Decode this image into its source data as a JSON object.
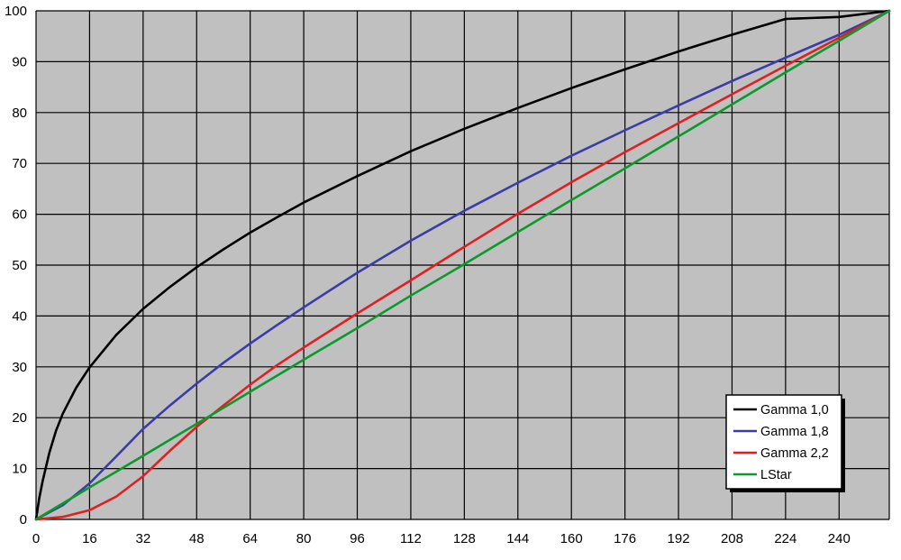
{
  "chart_data": {
    "type": "line",
    "title": "",
    "xlabel": "",
    "ylabel": "",
    "xlim": [
      0,
      255
    ],
    "ylim": [
      0,
      100
    ],
    "grid": true,
    "legend_position": "bottom-right",
    "plot_background": "#c0c0c0",
    "grid_color": "#000000",
    "x_ticks": [
      0,
      16,
      32,
      48,
      64,
      80,
      96,
      112,
      128,
      144,
      160,
      176,
      192,
      208,
      224,
      240
    ],
    "y_ticks": [
      0,
      10,
      20,
      30,
      40,
      50,
      60,
      70,
      80,
      90,
      100
    ],
    "series": [
      {
        "name": "Gamma 1,0",
        "color": "#000000",
        "x": [
          0,
          1,
          2,
          4,
          6,
          8,
          12,
          16,
          24,
          32,
          40,
          48,
          56,
          64,
          72,
          80,
          96,
          112,
          128,
          144,
          160,
          176,
          192,
          208,
          224,
          240,
          255
        ],
        "y": [
          0,
          4.3,
          7.6,
          13.2,
          17.5,
          20.8,
          25.9,
          29.9,
          36.3,
          41.4,
          45.7,
          49.6,
          53.1,
          56.4,
          59.4,
          62.3,
          67.5,
          72.4,
          76.8,
          80.9,
          84.8,
          88.5,
          92.0,
          95.3,
          98.4,
          98.8,
          100
        ]
      },
      {
        "name": "Gamma 1,8",
        "color": "#3c3ca8",
        "x": [
          0,
          8,
          16,
          24,
          32,
          40,
          48,
          56,
          64,
          72,
          80,
          96,
          112,
          128,
          144,
          160,
          176,
          192,
          208,
          224,
          240,
          255
        ],
        "y": [
          0,
          2.8,
          7.1,
          12.4,
          17.8,
          22.4,
          26.7,
          30.8,
          34.6,
          38.2,
          41.7,
          48.5,
          54.8,
          60.7,
          66.2,
          71.5,
          76.5,
          81.4,
          86.2,
          90.8,
          95.3,
          100
        ]
      },
      {
        "name": "Gamma 2,2",
        "color": "#e02020",
        "x": [
          0,
          8,
          16,
          24,
          32,
          40,
          48,
          56,
          64,
          72,
          80,
          96,
          112,
          128,
          144,
          160,
          176,
          192,
          208,
          224,
          240,
          255
        ],
        "y": [
          0,
          0.5,
          1.8,
          4.5,
          8.5,
          13.5,
          18.2,
          22.4,
          26.5,
          30.3,
          33.8,
          40.5,
          47.0,
          53.6,
          60.1,
          66.3,
          72.2,
          77.9,
          83.6,
          89.2,
          94.7,
          100
        ]
      },
      {
        "name": "LStar",
        "color": "#0a9a2a",
        "x": [
          0,
          16,
          32,
          48,
          64,
          80,
          96,
          112,
          128,
          144,
          160,
          176,
          192,
          208,
          224,
          240,
          255
        ],
        "y": [
          0,
          6.3,
          12.5,
          18.8,
          25.1,
          31.4,
          37.6,
          44.0,
          50.2,
          56.5,
          62.8,
          69.0,
          75.3,
          81.6,
          87.9,
          94.1,
          100
        ]
      }
    ]
  }
}
